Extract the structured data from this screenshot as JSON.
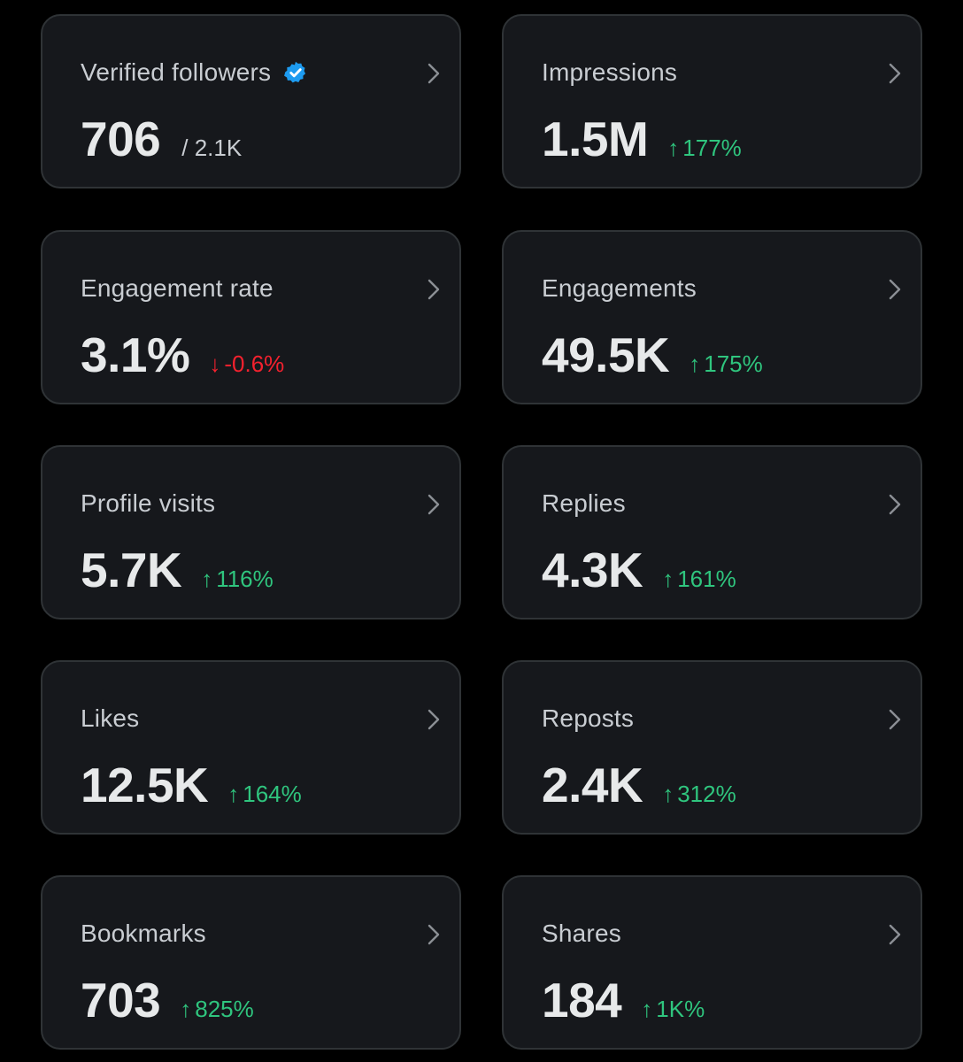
{
  "colors": {
    "background": "#000000",
    "card": "#16181c",
    "border": "#2f3336",
    "up": "#2fc57e",
    "down": "#f4212e",
    "verified": "#1d9bf0"
  },
  "cards": [
    {
      "title": "Verified followers",
      "value": "706",
      "sub": "/ 2.1K",
      "icon": "verified-badge-icon"
    },
    {
      "title": "Impressions",
      "value": "1.5M",
      "delta": "177%",
      "direction": "up",
      "arrow": "↑"
    },
    {
      "title": "Engagement rate",
      "value": "3.1%",
      "delta": "-0.6%",
      "direction": "down",
      "arrow": "↓"
    },
    {
      "title": "Engagements",
      "value": "49.5K",
      "delta": "175%",
      "direction": "up",
      "arrow": "↑"
    },
    {
      "title": "Profile visits",
      "value": "5.7K",
      "delta": "116%",
      "direction": "up",
      "arrow": "↑"
    },
    {
      "title": "Replies",
      "value": "4.3K",
      "delta": "161%",
      "direction": "up",
      "arrow": "↑"
    },
    {
      "title": "Likes",
      "value": "12.5K",
      "delta": "164%",
      "direction": "up",
      "arrow": "↑"
    },
    {
      "title": "Reposts",
      "value": "2.4K",
      "delta": "312%",
      "direction": "up",
      "arrow": "↑"
    },
    {
      "title": "Bookmarks",
      "value": "703",
      "delta": "825%",
      "direction": "up",
      "arrow": "↑"
    },
    {
      "title": "Shares",
      "value": "184",
      "delta": "1K%",
      "direction": "up",
      "arrow": "↑"
    }
  ]
}
